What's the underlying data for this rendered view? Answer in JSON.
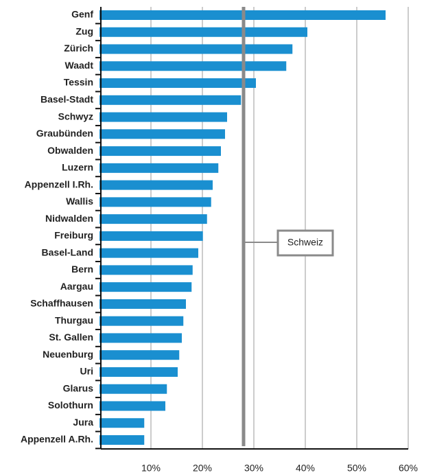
{
  "chart_data": {
    "type": "bar",
    "orientation": "horizontal",
    "categories": [
      "Genf",
      "Zug",
      "Zürich",
      "Waadt",
      "Tessin",
      "Basel-Stadt",
      "Schwyz",
      "Graubünden",
      "Obwalden",
      "Luzern",
      "Appenzell I.Rh.",
      "Wallis",
      "Nidwalden",
      "Freiburg",
      "Basel-Land",
      "Bern",
      "Aargau",
      "Schaffhausen",
      "Thurgau",
      "St. Gallen",
      "Neuenburg",
      "Uri",
      "Glarus",
      "Solothurn",
      "Jura",
      "Appenzell A.Rh."
    ],
    "values": [
      55.6,
      40.4,
      37.5,
      36.3,
      30.4,
      27.5,
      24.8,
      24.4,
      23.6,
      23.1,
      22.0,
      21.7,
      20.9,
      20.1,
      19.2,
      18.1,
      17.9,
      16.8,
      16.3,
      16.0,
      15.5,
      15.2,
      13.1,
      12.8,
      8.7,
      8.7
    ],
    "color": "#1a8fd0",
    "xlim": [
      0,
      60
    ],
    "xticks": [
      {
        "value": 10,
        "label": "10%"
      },
      {
        "value": 20,
        "label": "20%"
      },
      {
        "value": 30,
        "label": "30%"
      },
      {
        "value": 40,
        "label": "40%"
      },
      {
        "value": 50,
        "label": "50%"
      },
      {
        "value": 60,
        "label": "60%"
      }
    ],
    "grid": true,
    "reference": {
      "label": "Schweiz",
      "value": 28.0,
      "color": "#8a8a8a"
    }
  }
}
